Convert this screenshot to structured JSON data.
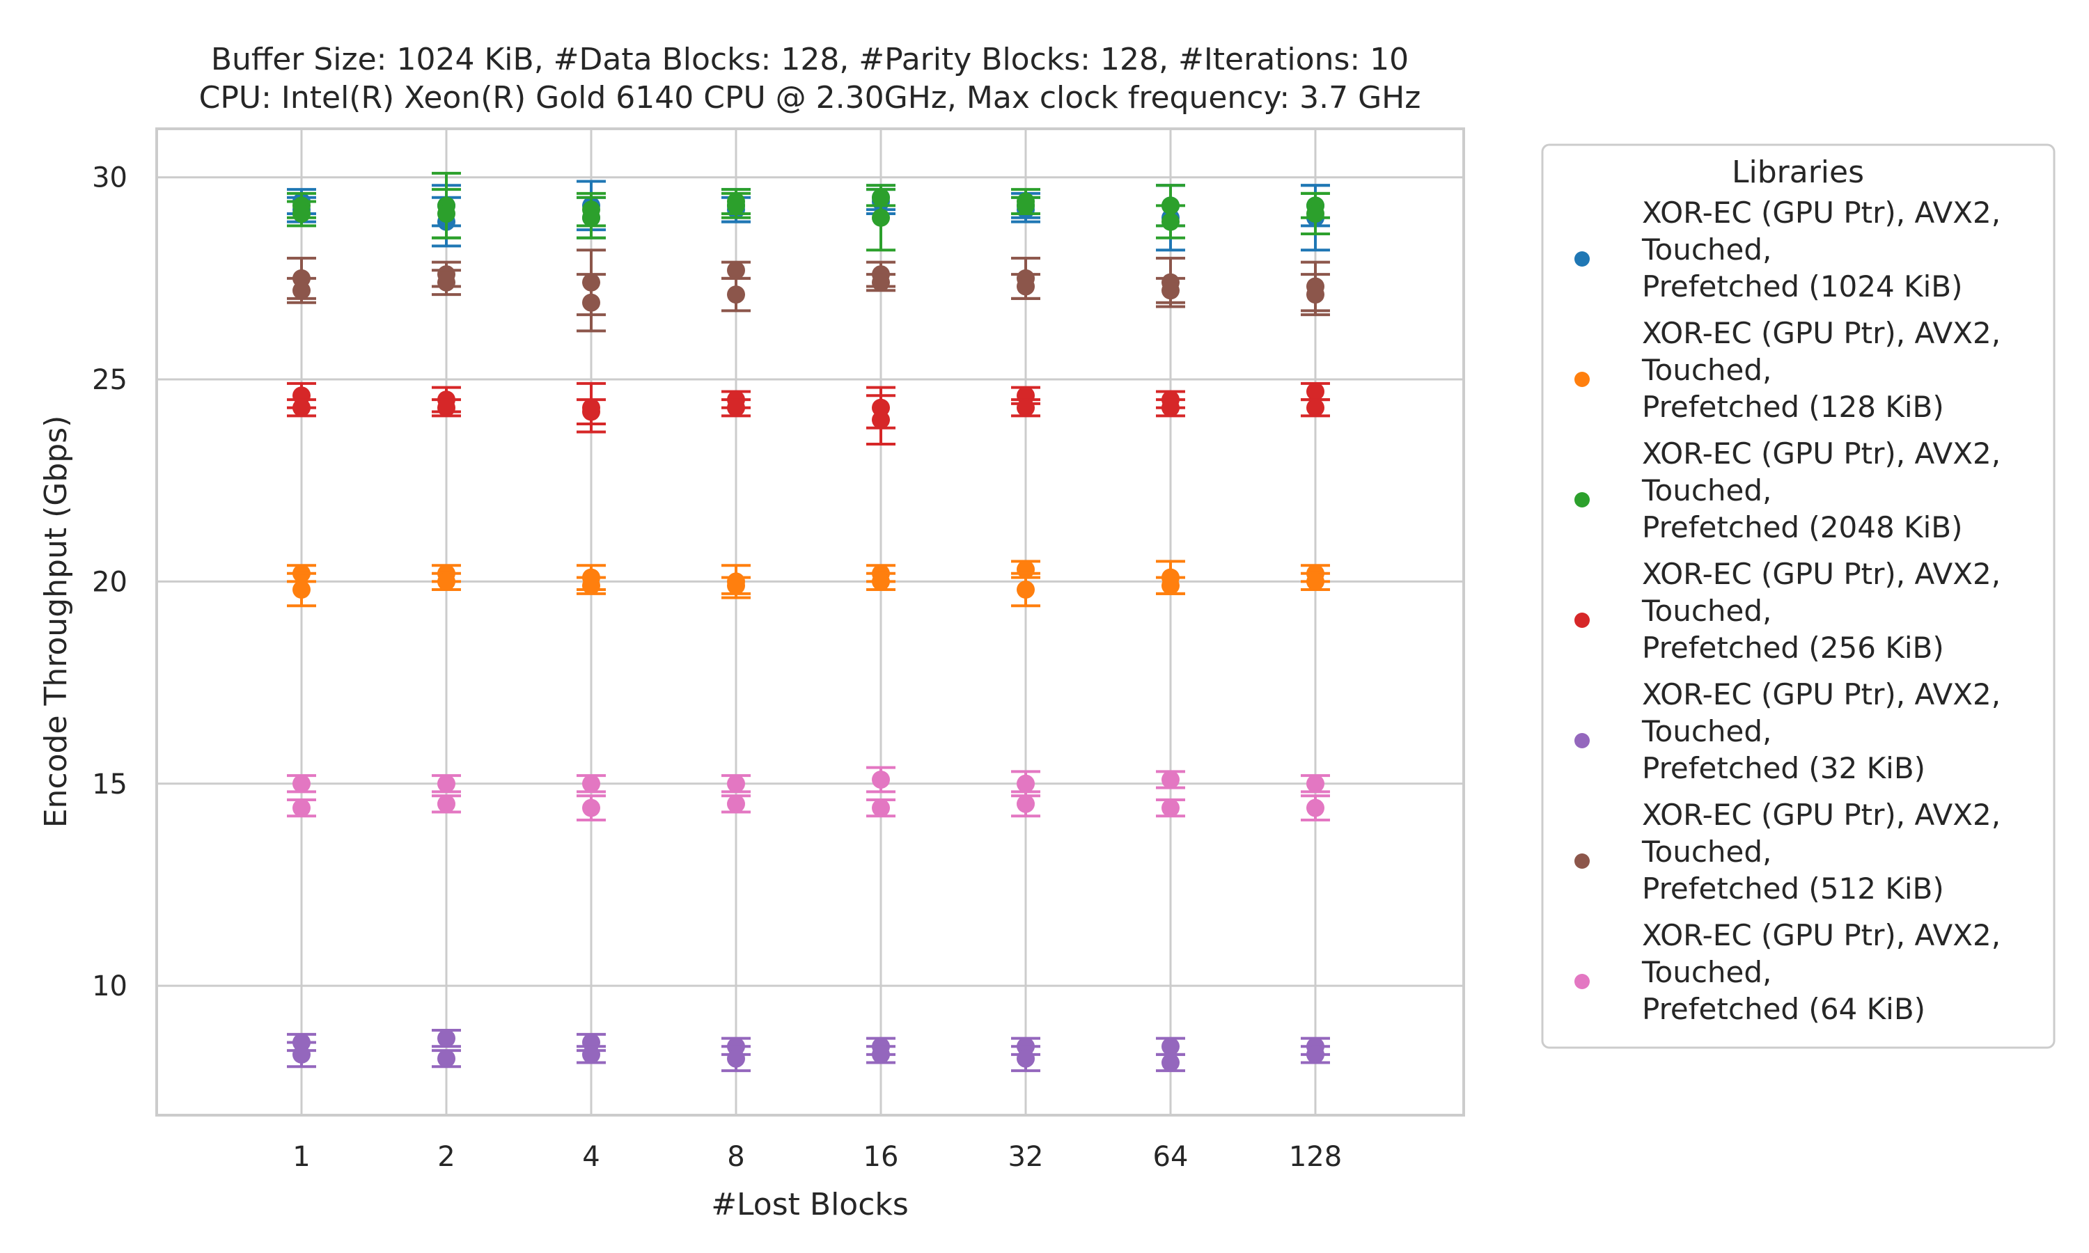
{
  "chart_data": {
    "type": "scatter",
    "title": [
      "Buffer Size: 1024 KiB, #Data Blocks: 128, #Parity Blocks: 128, #Iterations: 10",
      "CPU: Intel(R) Xeon(R) Gold 6140 CPU @ 2.30GHz, Max clock frequency: 3.7 GHz"
    ],
    "xlabel": "#Lost Blocks",
    "ylabel": "Encode Throughput (Gbps)",
    "x_categories": [
      "1",
      "2",
      "4",
      "8",
      "16",
      "32",
      "64",
      "128"
    ],
    "ylim": [
      6.8,
      31.2
    ],
    "yticks": [
      "10",
      "15",
      "20",
      "25",
      "30"
    ],
    "grid": true,
    "legend": {
      "title": "Libraries",
      "placement": "outside-right",
      "entries": [
        [
          "XOR-EC (GPU Ptr), AVX2,",
          " Touched,",
          " Prefetched (1024 KiB)"
        ],
        [
          "XOR-EC (GPU Ptr), AVX2,",
          " Touched,",
          " Prefetched (128 KiB)"
        ],
        [
          "XOR-EC (GPU Ptr), AVX2,",
          " Touched,",
          " Prefetched (2048 KiB)"
        ],
        [
          "XOR-EC (GPU Ptr), AVX2,",
          " Touched,",
          " Prefetched (256 KiB)"
        ],
        [
          "XOR-EC (GPU Ptr), AVX2,",
          " Touched,",
          " Prefetched (32 KiB)"
        ],
        [
          "XOR-EC (GPU Ptr), AVX2,",
          " Touched,",
          " Prefetched (512 KiB)"
        ],
        [
          "XOR-EC (GPU Ptr), AVX2,",
          " Touched,",
          " Prefetched (64 KiB)"
        ]
      ]
    },
    "series": [
      {
        "name": "XOR-EC (GPU Ptr), AVX2, Touched, Prefetched (1024 KiB)",
        "color": "#1f77b4",
        "points": [
          {
            "x": "1",
            "y": 29.4,
            "err": 0.3
          },
          {
            "x": "1",
            "y": 29.2,
            "err": 0.3
          },
          {
            "x": "2",
            "y": 28.9,
            "err": 0.6
          },
          {
            "x": "2",
            "y": 29.3,
            "err": 0.5
          },
          {
            "x": "4",
            "y": 29.3,
            "err": 0.6
          },
          {
            "x": "4",
            "y": 29.0,
            "err": 0.5
          },
          {
            "x": "8",
            "y": 29.3,
            "err": 0.4
          },
          {
            "x": "8",
            "y": 29.2,
            "err": 0.3
          },
          {
            "x": "16",
            "y": 29.5,
            "err": 0.3
          },
          {
            "x": "16",
            "y": 29.4,
            "err": 0.3
          },
          {
            "x": "32",
            "y": 29.3,
            "err": 0.3
          },
          {
            "x": "32",
            "y": 29.2,
            "err": 0.3
          },
          {
            "x": "64",
            "y": 29.3,
            "err": 0.5
          },
          {
            "x": "64",
            "y": 29.0,
            "err": 0.8
          },
          {
            "x": "128",
            "y": 29.3,
            "err": 0.5
          },
          {
            "x": "128",
            "y": 29.0,
            "err": 0.8
          }
        ]
      },
      {
        "name": "XOR-EC (GPU Ptr), AVX2, Touched, Prefetched (128 KiB)",
        "color": "#ff7f0e",
        "points": [
          {
            "x": "1",
            "y": 20.2,
            "err": 0.2
          },
          {
            "x": "1",
            "y": 19.8,
            "err": 0.4
          },
          {
            "x": "2",
            "y": 20.2,
            "err": 0.2
          },
          {
            "x": "2",
            "y": 20.0,
            "err": 0.2
          },
          {
            "x": "4",
            "y": 20.1,
            "err": 0.3
          },
          {
            "x": "4",
            "y": 19.9,
            "err": 0.2
          },
          {
            "x": "8",
            "y": 20.0,
            "err": 0.4
          },
          {
            "x": "8",
            "y": 19.9,
            "err": 0.2
          },
          {
            "x": "16",
            "y": 20.2,
            "err": 0.2
          },
          {
            "x": "16",
            "y": 20.0,
            "err": 0.2
          },
          {
            "x": "32",
            "y": 20.3,
            "err": 0.2
          },
          {
            "x": "32",
            "y": 19.8,
            "err": 0.4
          },
          {
            "x": "64",
            "y": 20.1,
            "err": 0.4
          },
          {
            "x": "64",
            "y": 19.9,
            "err": 0.2
          },
          {
            "x": "128",
            "y": 20.2,
            "err": 0.2
          },
          {
            "x": "128",
            "y": 20.0,
            "err": 0.2
          }
        ]
      },
      {
        "name": "XOR-EC (GPU Ptr), AVX2, Touched, Prefetched (2048 KiB)",
        "color": "#2ca02c",
        "points": [
          {
            "x": "1",
            "y": 29.3,
            "err": 0.3
          },
          {
            "x": "1",
            "y": 29.1,
            "err": 0.3
          },
          {
            "x": "2",
            "y": 29.3,
            "err": 0.8
          },
          {
            "x": "2",
            "y": 29.1,
            "err": 0.6
          },
          {
            "x": "4",
            "y": 29.2,
            "err": 0.4
          },
          {
            "x": "4",
            "y": 29.0,
            "err": 0.5
          },
          {
            "x": "8",
            "y": 29.4,
            "err": 0.3
          },
          {
            "x": "8",
            "y": 29.3,
            "err": 0.3
          },
          {
            "x": "16",
            "y": 29.5,
            "err": 0.2
          },
          {
            "x": "16",
            "y": 29.0,
            "err": 0.8
          },
          {
            "x": "32",
            "y": 29.4,
            "err": 0.3
          },
          {
            "x": "32",
            "y": 29.3,
            "err": 0.2
          },
          {
            "x": "64",
            "y": 29.3,
            "err": 0.5
          },
          {
            "x": "64",
            "y": 28.9,
            "err": 0.4
          },
          {
            "x": "128",
            "y": 29.3,
            "err": 0.3
          },
          {
            "x": "128",
            "y": 29.1,
            "err": 0.5
          }
        ]
      },
      {
        "name": "XOR-EC (GPU Ptr), AVX2, Touched, Prefetched (256 KiB)",
        "color": "#d62728",
        "points": [
          {
            "x": "1",
            "y": 24.6,
            "err": 0.3
          },
          {
            "x": "1",
            "y": 24.3,
            "err": 0.2
          },
          {
            "x": "2",
            "y": 24.5,
            "err": 0.3
          },
          {
            "x": "2",
            "y": 24.3,
            "err": 0.2
          },
          {
            "x": "4",
            "y": 24.3,
            "err": 0.6
          },
          {
            "x": "4",
            "y": 24.2,
            "err": 0.3
          },
          {
            "x": "8",
            "y": 24.5,
            "err": 0.2
          },
          {
            "x": "8",
            "y": 24.3,
            "err": 0.2
          },
          {
            "x": "16",
            "y": 24.3,
            "err": 0.5
          },
          {
            "x": "16",
            "y": 24.0,
            "err": 0.6
          },
          {
            "x": "32",
            "y": 24.6,
            "err": 0.2
          },
          {
            "x": "32",
            "y": 24.3,
            "err": 0.2
          },
          {
            "x": "64",
            "y": 24.5,
            "err": 0.2
          },
          {
            "x": "64",
            "y": 24.3,
            "err": 0.2
          },
          {
            "x": "128",
            "y": 24.7,
            "err": 0.2
          },
          {
            "x": "128",
            "y": 24.3,
            "err": 0.2
          }
        ]
      },
      {
        "name": "XOR-EC (GPU Ptr), AVX2, Touched, Prefetched (32 KiB)",
        "color": "#9467bd",
        "points": [
          {
            "x": "1",
            "y": 8.6,
            "err": 0.2
          },
          {
            "x": "1",
            "y": 8.3,
            "err": 0.3
          },
          {
            "x": "2",
            "y": 8.7,
            "err": 0.2
          },
          {
            "x": "2",
            "y": 8.2,
            "err": 0.2
          },
          {
            "x": "4",
            "y": 8.6,
            "err": 0.2
          },
          {
            "x": "4",
            "y": 8.3,
            "err": 0.2
          },
          {
            "x": "8",
            "y": 8.5,
            "err": 0.2
          },
          {
            "x": "8",
            "y": 8.2,
            "err": 0.3
          },
          {
            "x": "16",
            "y": 8.5,
            "err": 0.2
          },
          {
            "x": "16",
            "y": 8.3,
            "err": 0.2
          },
          {
            "x": "32",
            "y": 8.5,
            "err": 0.2
          },
          {
            "x": "32",
            "y": 8.2,
            "err": 0.3
          },
          {
            "x": "64",
            "y": 8.5,
            "err": 0.2
          },
          {
            "x": "64",
            "y": 8.1,
            "err": 0.2
          },
          {
            "x": "128",
            "y": 8.5,
            "err": 0.2
          },
          {
            "x": "128",
            "y": 8.3,
            "err": 0.2
          }
        ]
      },
      {
        "name": "XOR-EC (GPU Ptr), AVX2, Touched, Prefetched (512 KiB)",
        "color": "#8c564b",
        "points": [
          {
            "x": "1",
            "y": 27.5,
            "err": 0.5
          },
          {
            "x": "1",
            "y": 27.2,
            "err": 0.3
          },
          {
            "x": "2",
            "y": 27.6,
            "err": 0.3
          },
          {
            "x": "2",
            "y": 27.4,
            "err": 0.3
          },
          {
            "x": "4",
            "y": 27.4,
            "err": 0.8
          },
          {
            "x": "4",
            "y": 26.9,
            "err": 0.7
          },
          {
            "x": "8",
            "y": 27.7,
            "err": 0.2
          },
          {
            "x": "8",
            "y": 27.1,
            "err": 0.4
          },
          {
            "x": "16",
            "y": 27.6,
            "err": 0.3
          },
          {
            "x": "16",
            "y": 27.4,
            "err": 0.2
          },
          {
            "x": "32",
            "y": 27.5,
            "err": 0.5
          },
          {
            "x": "32",
            "y": 27.3,
            "err": 0.3
          },
          {
            "x": "64",
            "y": 27.4,
            "err": 0.6
          },
          {
            "x": "64",
            "y": 27.2,
            "err": 0.3
          },
          {
            "x": "128",
            "y": 27.3,
            "err": 0.6
          },
          {
            "x": "128",
            "y": 27.1,
            "err": 0.5
          }
        ]
      },
      {
        "name": "XOR-EC (GPU Ptr), AVX2, Touched, Prefetched (64 KiB)",
        "color": "#e377c2",
        "points": [
          {
            "x": "1",
            "y": 15.0,
            "err": 0.2
          },
          {
            "x": "1",
            "y": 14.4,
            "err": 0.2
          },
          {
            "x": "2",
            "y": 15.0,
            "err": 0.2
          },
          {
            "x": "2",
            "y": 14.5,
            "err": 0.2
          },
          {
            "x": "4",
            "y": 15.0,
            "err": 0.2
          },
          {
            "x": "4",
            "y": 14.4,
            "err": 0.3
          },
          {
            "x": "8",
            "y": 15.0,
            "err": 0.2
          },
          {
            "x": "8",
            "y": 14.5,
            "err": 0.2
          },
          {
            "x": "16",
            "y": 15.1,
            "err": 0.3
          },
          {
            "x": "16",
            "y": 14.4,
            "err": 0.2
          },
          {
            "x": "32",
            "y": 15.0,
            "err": 0.3
          },
          {
            "x": "32",
            "y": 14.5,
            "err": 0.3
          },
          {
            "x": "64",
            "y": 15.1,
            "err": 0.2
          },
          {
            "x": "64",
            "y": 14.4,
            "err": 0.2
          },
          {
            "x": "128",
            "y": 15.0,
            "err": 0.2
          },
          {
            "x": "128",
            "y": 14.4,
            "err": 0.3
          }
        ]
      }
    ]
  }
}
